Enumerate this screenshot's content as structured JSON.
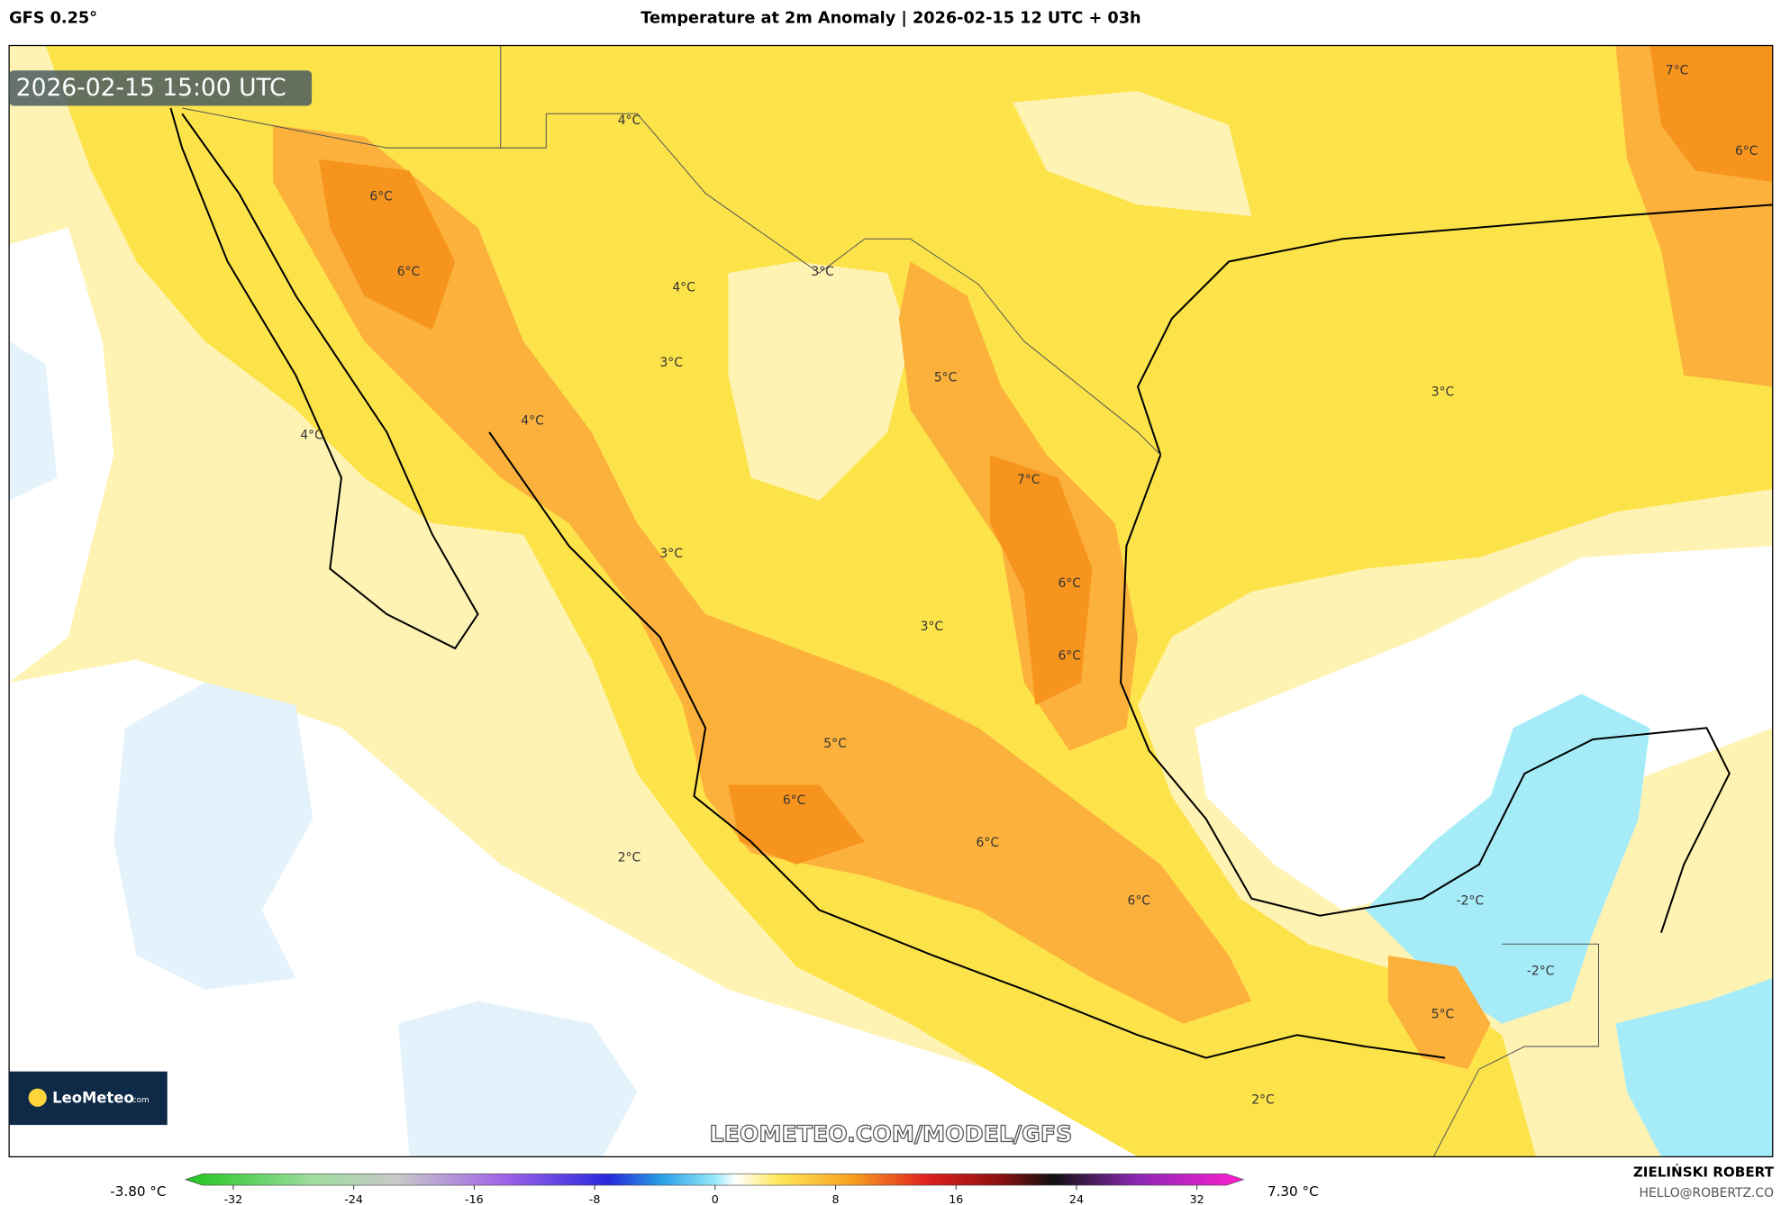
{
  "header": {
    "model": "GFS 0.25°",
    "title": "Temperature at 2m Anomaly | 2026-02-15 12 UTC + 03h"
  },
  "map": {
    "valid_time": "2026-02-15 15:00 UTC",
    "contour_labels": [
      "4°C",
      "6°C",
      "6°C",
      "3°C",
      "4°C",
      "3°C",
      "5°C",
      "3°C",
      "4°C",
      "4°C",
      "7°C",
      "3°C",
      "6°C",
      "3°C",
      "6°C",
      "5°C",
      "6°C",
      "6°C",
      "2°C",
      "6°C",
      "-2°C",
      "-2°C",
      "5°C",
      "2°C",
      "7°C",
      "6°C"
    ],
    "watermark": "LEOMETEO.COM/MODEL/GFS",
    "logo_name": "LeoMeteo",
    "logo_suffix": ".com"
  },
  "colorbar": {
    "min_label": "-3.80 °C",
    "max_label": "7.30 °C",
    "lim": [
      -32,
      32
    ],
    "ticks": [
      -32,
      -24,
      -16,
      -8,
      0,
      8,
      16,
      24,
      32
    ]
  },
  "footer": {
    "author": "ZIELIŃSKI ROBERT",
    "email": "HELLO@ROBERTZ.CO"
  }
}
